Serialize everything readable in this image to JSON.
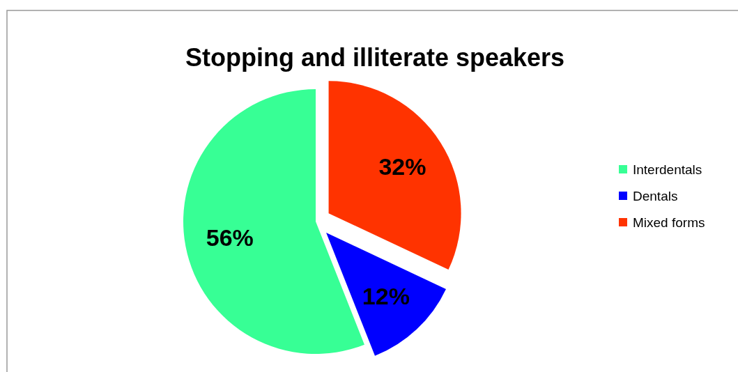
{
  "chart_data": {
    "type": "pie",
    "title": "Stopping and illiterate speakers",
    "categories": [
      "Interdentals",
      "Dentals",
      "Mixed forms"
    ],
    "values": [
      56,
      12,
      32
    ],
    "colors": [
      "#37ff95",
      "#0000ff",
      "#ff3300"
    ],
    "value_labels": [
      "56%",
      "12%",
      "32%"
    ],
    "legend": "right"
  }
}
